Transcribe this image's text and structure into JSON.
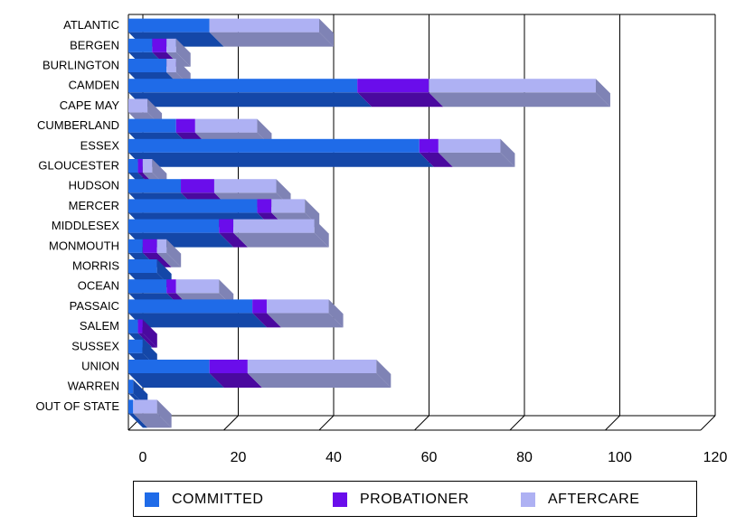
{
  "chart_data": {
    "type": "bar",
    "orientation": "horizontal",
    "stacked": true,
    "three_d": true,
    "categories": [
      "ATLANTIC",
      "BERGEN",
      "BURLINGTON",
      "CAMDEN",
      "CAPE MAY",
      "CUMBERLAND",
      "ESSEX",
      "GLOUCESTER",
      "HUDSON",
      "MERCER",
      "MIDDLESEX",
      "MONMOUTH",
      "MORRIS",
      "OCEAN",
      "PASSAIC",
      "SALEM",
      "SUSSEX",
      "UNION",
      "WARREN",
      "OUT OF STATE"
    ],
    "series": [
      {
        "name": "COMMITTED",
        "color": "#1F6BE8",
        "side_color": "#1447A8",
        "values": [
          17,
          5,
          8,
          48,
          0,
          10,
          61,
          2,
          11,
          27,
          19,
          3,
          6,
          8,
          26,
          2,
          3,
          17,
          1,
          1
        ]
      },
      {
        "name": "PROBATIONER",
        "color": "#6A0DEB",
        "side_color": "#4A099F",
        "values": [
          0,
          3,
          0,
          15,
          0,
          4,
          4,
          1,
          7,
          3,
          3,
          3,
          0,
          2,
          3,
          1,
          0,
          8,
          0,
          0
        ]
      },
      {
        "name": "AFTERCARE",
        "color": "#AEB1F3",
        "side_color": "#7F83B5",
        "values": [
          23,
          2,
          2,
          35,
          4,
          13,
          13,
          2,
          13,
          7,
          17,
          2,
          0,
          9,
          13,
          0,
          0,
          27,
          0,
          5
        ]
      }
    ],
    "xlim": [
      0,
      120
    ],
    "xticks": [
      0,
      20,
      40,
      60,
      80,
      100,
      120
    ],
    "xtick_labels": [
      "0",
      "20",
      "40",
      "60",
      "80",
      "100",
      "120"
    ],
    "grid": true,
    "legend_position": "bottom"
  }
}
